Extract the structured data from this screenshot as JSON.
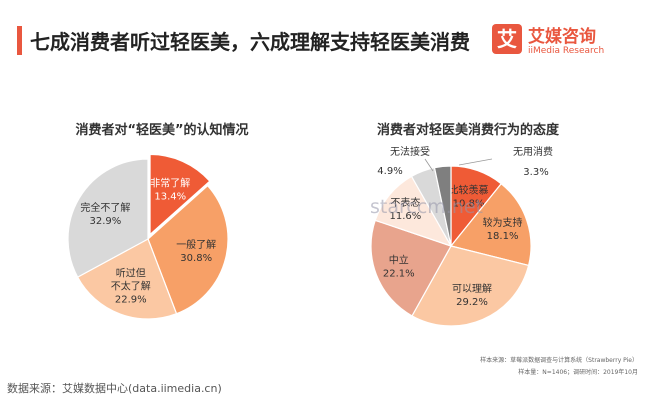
{
  "header": {
    "title": "七成消费者听过轻医美，六成理解支持轻医美消费",
    "logo_mark": "艾",
    "logo_name": "艾媒咨询",
    "logo_sub": "iiMedia Research"
  },
  "watermark": "starccm.net",
  "footer": {
    "source": "数据来源：艾媒数据中心(data.iimedia.cn)",
    "sample_source": "样本来源：草莓派数据调查与计算系统（Strawberry Pie）",
    "sample_size": "样本量：N=1406；调研时间：2019年10月"
  },
  "colors": {
    "accent": "#e9573f",
    "dark_orange": "#ef5b36",
    "mid_orange": "#f7a067",
    "light_orange": "#fbc8a3",
    "light_peach": "#fde8dc",
    "grey": "#d9d9d9",
    "dark_grey": "#7f7f7f",
    "salmon": "#e8a48d"
  },
  "chart_data": [
    {
      "type": "pie",
      "title": "消费者对“轻医美”的认知情况",
      "slices": [
        {
          "label": "非常了解",
          "value": 13.4,
          "value_label": "13.4%",
          "color": "#ef5b36",
          "explode": true,
          "text_color": "#ffffff"
        },
        {
          "label": "一般了解",
          "value": 30.8,
          "value_label": "30.8%",
          "color": "#f7a067",
          "text_color": "#333333"
        },
        {
          "label": "听过但\n不太了解",
          "value": 22.9,
          "value_label": "22.9%",
          "color": "#fbc8a3",
          "text_color": "#333333"
        },
        {
          "label": "完全不了解",
          "value": 32.9,
          "value_label": "32.9%",
          "color": "#d9d9d9",
          "text_color": "#333333"
        }
      ]
    },
    {
      "type": "pie",
      "title": "消费者对轻医美消费行为的态度",
      "slices": [
        {
          "label": "比较羡慕",
          "value": 10.8,
          "value_label": "10.8%",
          "color": "#ef5b36",
          "text_color": "#333333"
        },
        {
          "label": "较为支持",
          "value": 18.1,
          "value_label": "18.1%",
          "color": "#f7a067",
          "text_color": "#333333"
        },
        {
          "label": "可以理解",
          "value": 29.2,
          "value_label": "29.2%",
          "color": "#fbc8a3",
          "text_color": "#333333"
        },
        {
          "label": "中立",
          "value": 22.1,
          "value_label": "22.1%",
          "color": "#e8a48d",
          "text_color": "#333333"
        },
        {
          "label": "不表态",
          "value": 11.6,
          "value_label": "11.6%",
          "color": "#fde8dc",
          "text_color": "#333333"
        },
        {
          "label": "无法接受",
          "value": 4.9,
          "value_label": "4.9%",
          "color": "#d9d9d9",
          "text_color": "#333333"
        },
        {
          "label": "无用消费",
          "value": 3.3,
          "value_label": "3.3%",
          "color": "#7f7f7f",
          "text_color": "#333333"
        }
      ]
    }
  ]
}
